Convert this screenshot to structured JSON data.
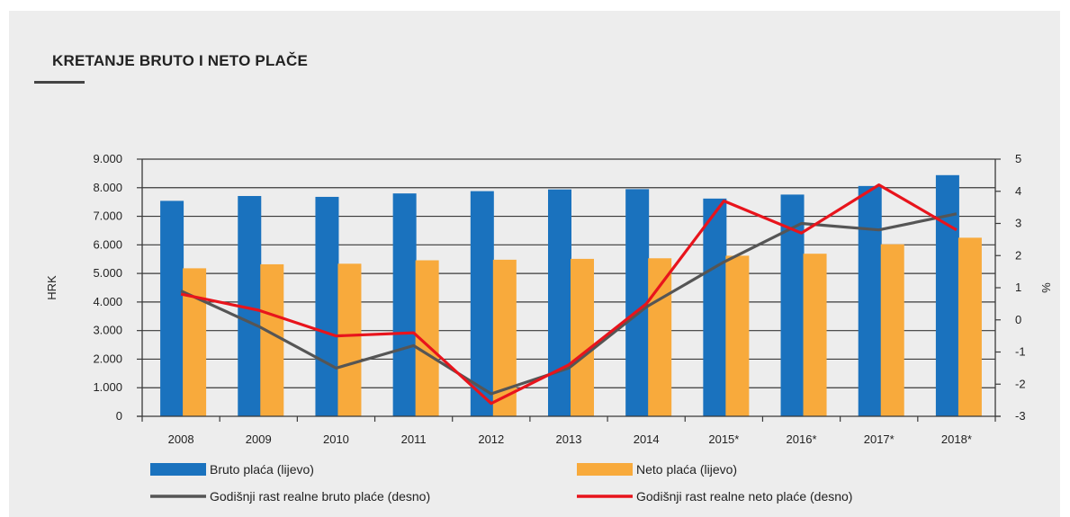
{
  "chart_data": {
    "type": "bar",
    "title": "KRETANJE BRUTO I NETO PLAČE",
    "categories": [
      "2008",
      "2009",
      "2010",
      "2011",
      "2012",
      "2013",
      "2014",
      "2015*",
      "2016*",
      "2017*",
      "2018*"
    ],
    "ylabel_left": "HRK",
    "ylabel_right": "%",
    "ylim_left": [
      0,
      9000
    ],
    "ylim_right": [
      -3,
      5
    ],
    "yticks_left": [
      "0",
      "1.000",
      "2.000",
      "3.000",
      "4.000",
      "5.000",
      "6.000",
      "7.000",
      "8.000",
      "9.000"
    ],
    "yticks_right": [
      "-3",
      "-2",
      "-1",
      "0",
      "1",
      "2",
      "3",
      "4",
      "5"
    ],
    "grid": true,
    "legend_position": "bottom",
    "bar_series": [
      {
        "name": "Bruto plaća (lijevo)",
        "color": "#1a72be",
        "values": [
          7540,
          7710,
          7680,
          7800,
          7880,
          7940,
          7950,
          7620,
          7760,
          8060,
          8440
        ]
      },
      {
        "name": "Neto plaća (lijevo)",
        "color": "#f8aa3c",
        "values": [
          5180,
          5320,
          5340,
          5460,
          5480,
          5510,
          5530,
          5620,
          5690,
          6020,
          6250
        ]
      }
    ],
    "line_series": [
      {
        "name": "Godišnji rast realne bruto plaće (desno)",
        "color": "#555555",
        "values": [
          0.9,
          -0.2,
          -1.5,
          -0.8,
          -2.3,
          -1.5,
          0.4,
          1.8,
          3.0,
          2.8,
          3.3
        ]
      },
      {
        "name": "Godišnji rast realne neto plaće (desno)",
        "color": "#e8141c",
        "values": [
          0.8,
          0.3,
          -0.5,
          -0.4,
          -2.6,
          -1.4,
          0.5,
          3.7,
          2.7,
          4.2,
          2.8
        ]
      }
    ]
  }
}
